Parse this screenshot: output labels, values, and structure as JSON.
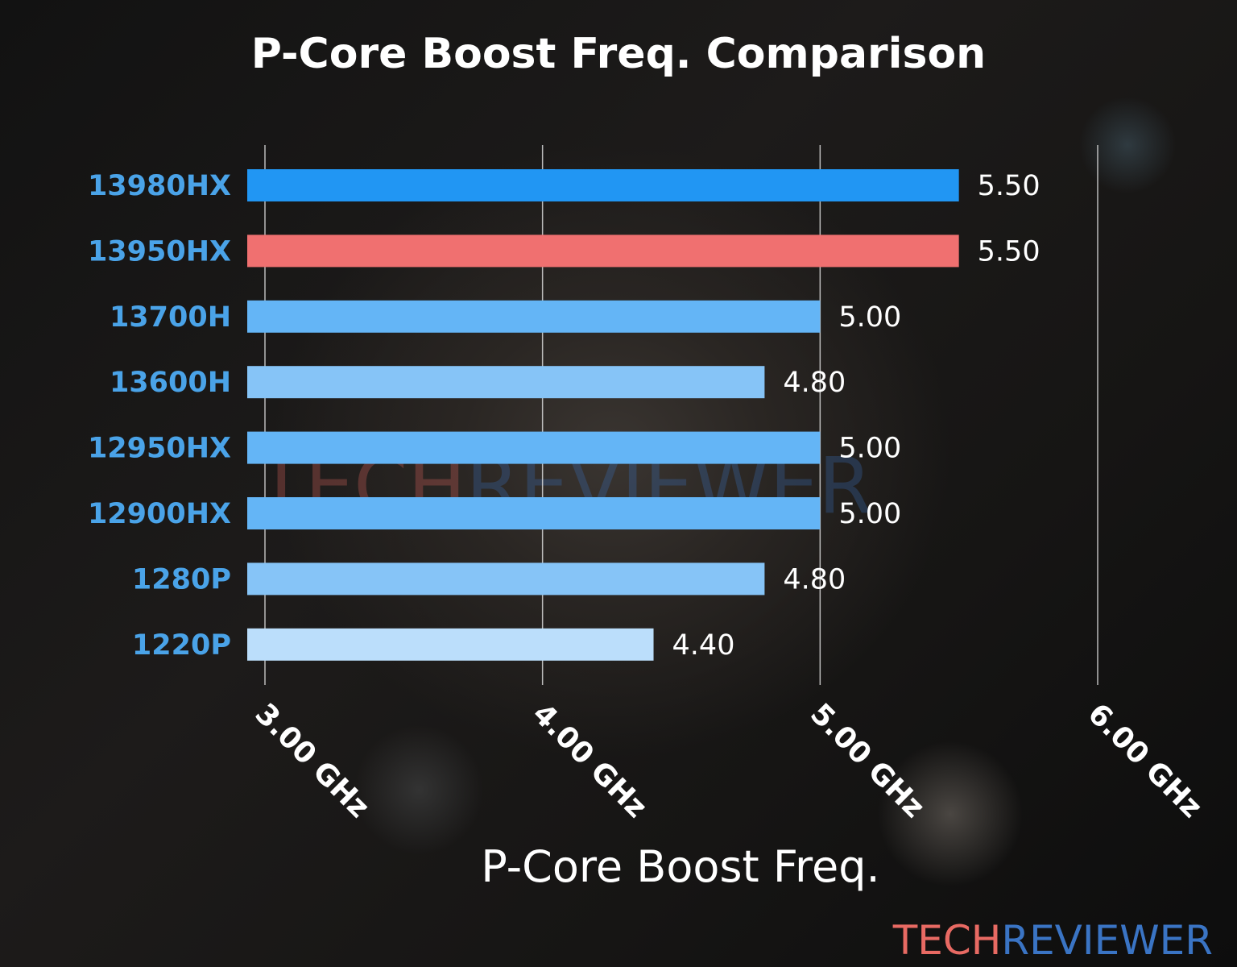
{
  "chart_data": {
    "type": "bar",
    "orientation": "horizontal",
    "title": "P-Core Boost Freq. Comparison",
    "xlabel": "P-Core Boost Freq.",
    "ylabel": "",
    "xlim": [
      3.0,
      6.0
    ],
    "x_ticks": [
      3.0,
      4.0,
      5.0,
      6.0
    ],
    "x_tick_labels": [
      "3.00 GHz",
      "4.00 GHz",
      "5.00 GHz",
      "6.00 GHz"
    ],
    "grid": "vertical",
    "categories": [
      "13980HX",
      "13950HX",
      "13700H",
      "13600H",
      "12950HX",
      "12900HX",
      "1280P",
      "1220P"
    ],
    "values": [
      5.5,
      5.5,
      5.0,
      4.8,
      5.0,
      5.0,
      4.8,
      4.4
    ],
    "value_labels": [
      "5.50",
      "5.50",
      "5.00",
      "4.80",
      "5.00",
      "5.00",
      "4.80",
      "4.40"
    ],
    "bar_colors": [
      "#2196f3",
      "#f07070",
      "#64b5f6",
      "#86c4f7",
      "#64b5f6",
      "#64b5f6",
      "#86c4f7",
      "#bbdefb"
    ],
    "category_label_color": "#4aa3e8"
  },
  "watermark": {
    "part1": "TECH",
    "part2": "REVIEWER",
    "part1_color": "#e86a63",
    "part2_color": "#3a74c4"
  }
}
